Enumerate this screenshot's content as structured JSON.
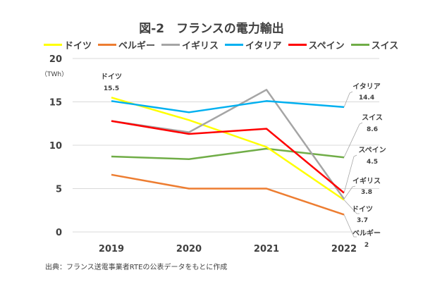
{
  "chart_data": {
    "type": "line",
    "title": "図-2　フランスの電力輸出",
    "unit_label": "（TWh）",
    "categories": [
      "2019",
      "2020",
      "2021",
      "2022"
    ],
    "ylim": [
      0,
      20
    ],
    "yticks": [
      "0",
      "5",
      "10",
      "15",
      "20"
    ],
    "grid": true,
    "legend_position": "top",
    "series": [
      {
        "name": "ドイツ",
        "color": "#FFFF00",
        "values": [
          15.5,
          12.9,
          9.8,
          3.7
        ]
      },
      {
        "name": "ベルギー",
        "color": "#ED7D31",
        "values": [
          6.6,
          5.0,
          5.0,
          2
        ]
      },
      {
        "name": "イギリス",
        "color": "#A5A5A5",
        "values": [
          12.8,
          11.5,
          16.4,
          3.8
        ]
      },
      {
        "name": "イタリア",
        "color": "#00B0F0",
        "values": [
          15.1,
          13.8,
          15.1,
          14.4
        ]
      },
      {
        "name": "スペイン",
        "color": "#FF0000",
        "values": [
          12.8,
          11.3,
          11.9,
          4.5
        ]
      },
      {
        "name": "スイス",
        "color": "#70AD47",
        "values": [
          8.7,
          8.4,
          9.6,
          8.6
        ]
      }
    ],
    "annotations": [
      {
        "name": "ドイツ",
        "value": "15.5"
      },
      {
        "name": "イタリア",
        "value": "14.4"
      },
      {
        "name": "スイス",
        "value": "8.6"
      },
      {
        "name": "スペイン",
        "value": "4.5"
      },
      {
        "name": "イギリス",
        "value": "3.8"
      },
      {
        "name": "ドイツ",
        "value": "3.7"
      },
      {
        "name": "ベルギー",
        "value": "2"
      }
    ]
  },
  "source": "出典：フランス送電事業者RTEの公表データをもとに作成"
}
